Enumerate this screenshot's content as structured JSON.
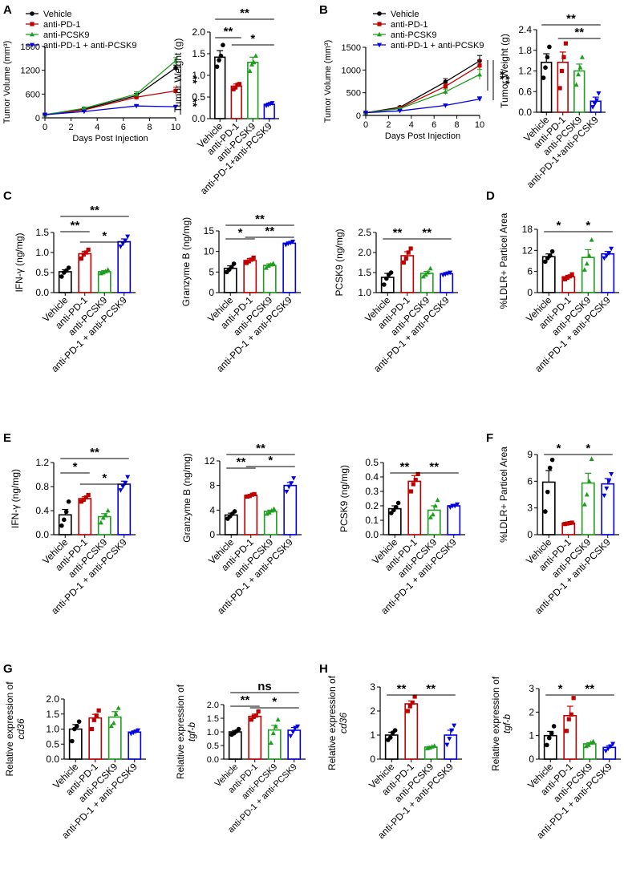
{
  "figure": {
    "panel_labels": [
      "A",
      "B",
      "C",
      "D",
      "E",
      "F",
      "G",
      "H"
    ],
    "colors": {
      "vehicle": "#000000",
      "anti_pd1": "#c00000",
      "anti_pcsk9": "#1e9e1e",
      "combo": "#0000e0"
    }
  },
  "chart_data": [
    {
      "id": "A1",
      "type": "line",
      "title": "",
      "xlabel": "Days Post Injection",
      "ylabel": "Tumor Volume (mm³)",
      "x": [
        0,
        3,
        7,
        10
      ],
      "xlim": [
        0,
        10
      ],
      "xticks": [
        0,
        2,
        4,
        6,
        8,
        10
      ],
      "ylim": [
        0,
        1800
      ],
      "yticks": [
        0,
        600,
        1200,
        1800
      ],
      "legend": [
        "Vehicle",
        "anti-PD-1",
        "anti-PCSK9",
        "anti-PD-1 + anti-PCSK9"
      ],
      "series": [
        {
          "name": "Vehicle",
          "values": [
            80,
            220,
            560,
            1260
          ],
          "err": [
            15,
            30,
            60,
            70
          ]
        },
        {
          "name": "anti-PD-1",
          "values": [
            80,
            200,
            520,
            680
          ],
          "err": [
            15,
            25,
            60,
            90
          ]
        },
        {
          "name": "anti-PCSK9",
          "values": [
            80,
            240,
            600,
            1440
          ],
          "err": [
            15,
            30,
            60,
            80
          ]
        },
        {
          "name": "anti-PD-1 + anti-PCSK9",
          "values": [
            80,
            160,
            300,
            280
          ],
          "err": [
            10,
            15,
            25,
            20
          ]
        }
      ],
      "annotations": [
        "**",
        "**"
      ]
    },
    {
      "id": "A2",
      "type": "bar",
      "title": "",
      "ylabel": "Tumor Weight (g)",
      "ylim": [
        0,
        2.0
      ],
      "yticks": [
        0.0,
        0.5,
        1.0,
        1.5,
        2.0
      ],
      "categories": [
        "Vehicle",
        "anti-PD-1",
        "anti-PCSK9",
        "anti-PD-1+anti-PCSK9"
      ],
      "values": [
        1.42,
        0.75,
        1.3,
        0.33
      ],
      "err": [
        0.15,
        0.05,
        0.12,
        0.03
      ],
      "points": [
        [
          1.2,
          1.35,
          1.45,
          1.7
        ],
        [
          0.68,
          0.72,
          0.78,
          0.8
        ],
        [
          1.1,
          1.25,
          1.3,
          1.45
        ],
        [
          0.3,
          0.32,
          0.34,
          0.36
        ]
      ],
      "sig": [
        {
          "a": 0,
          "b": 1,
          "label": "**"
        },
        {
          "a": 1,
          "b": 3,
          "label": "*"
        },
        {
          "a": 0,
          "b": 3,
          "label": "**"
        }
      ]
    },
    {
      "id": "B1",
      "type": "line",
      "title": "",
      "xlabel": "Days Post Injection",
      "ylabel": "Tumor Volume (mm³)",
      "x": [
        0,
        3,
        7,
        10
      ],
      "xlim": [
        0,
        10
      ],
      "xticks": [
        0,
        2,
        4,
        6,
        8,
        10
      ],
      "ylim": [
        0,
        1500
      ],
      "yticks": [
        0,
        500,
        1000,
        1500
      ],
      "legend": [
        "Vehicle",
        "anti-PD-1",
        "anti-PCSK9",
        "anti-PD-1 + anti-PCSK9"
      ],
      "series": [
        {
          "name": "Vehicle",
          "values": [
            60,
            180,
            740,
            1200
          ],
          "err": [
            10,
            25,
            70,
            120
          ]
        },
        {
          "name": "anti-PD-1",
          "values": [
            60,
            160,
            640,
            1100
          ],
          "err": [
            10,
            20,
            60,
            120
          ]
        },
        {
          "name": "anti-PCSK9",
          "values": [
            60,
            150,
            520,
            900
          ],
          "err": [
            10,
            20,
            60,
            110
          ]
        },
        {
          "name": "anti-PD-1 + anti-PCSK9",
          "values": [
            60,
            100,
            220,
            360
          ],
          "err": [
            10,
            15,
            25,
            50
          ]
        }
      ],
      "annotations": [
        "**",
        "**"
      ]
    },
    {
      "id": "B2",
      "type": "bar",
      "title": "",
      "ylabel": "Tumor Weight (g)",
      "ylim": [
        0,
        2.4
      ],
      "yticks": [
        0.0,
        0.6,
        1.2,
        1.8,
        2.4
      ],
      "categories": [
        "Vehicle",
        "anti-PD-1",
        "anti-PCSK9",
        "anti-PD-1+anti-PCSK9"
      ],
      "values": [
        1.45,
        1.45,
        1.2,
        0.32
      ],
      "err": [
        0.25,
        0.3,
        0.2,
        0.12
      ],
      "points": [
        [
          1.0,
          1.3,
          1.6,
          1.9
        ],
        [
          0.7,
          1.2,
          1.6,
          2.0
        ],
        [
          0.8,
          1.1,
          1.3,
          1.6
        ],
        [
          0.15,
          0.25,
          0.35,
          0.55
        ]
      ],
      "sig": [
        {
          "a": 1,
          "b": 3,
          "label": "**"
        },
        {
          "a": 0,
          "b": 3,
          "label": "**"
        }
      ]
    },
    {
      "id": "C1",
      "type": "bar",
      "title": "",
      "ylabel": "IFN-γ (ng/mg)",
      "ylim": [
        0,
        1.5
      ],
      "yticks": [
        0.0,
        0.5,
        1.0,
        1.5
      ],
      "categories": [
        "Vehicle",
        "anti-PD-1",
        "anti-PCSK9",
        "anti-PD-1 + anti-PCSK9"
      ],
      "values": [
        0.52,
        0.97,
        0.52,
        1.27
      ],
      "err": [
        0.05,
        0.06,
        0.03,
        0.07
      ],
      "points": [
        [
          0.4,
          0.5,
          0.55,
          0.62
        ],
        [
          0.85,
          0.95,
          1.0,
          1.07
        ],
        [
          0.48,
          0.5,
          0.53,
          0.57
        ],
        [
          1.15,
          1.22,
          1.3,
          1.4
        ]
      ],
      "sig": [
        {
          "a": 0,
          "b": 1,
          "label": "**"
        },
        {
          "a": 1,
          "b": 3,
          "label": "*"
        },
        {
          "a": 0,
          "b": 3,
          "label": "**"
        }
      ]
    },
    {
      "id": "C2",
      "type": "bar",
      "title": "",
      "ylabel": "Granzyme B (ng/mg)",
      "ylim": [
        0,
        15
      ],
      "yticks": [
        0,
        5,
        10,
        15
      ],
      "categories": [
        "Vehicle",
        "anti-PD-1",
        "anti-PCSK9",
        "anti-PD-1 + anti-PCSK9"
      ],
      "values": [
        5.9,
        7.8,
        6.6,
        12.0
      ],
      "err": [
        0.6,
        0.5,
        0.4,
        0.3
      ],
      "points": [
        [
          5.0,
          5.6,
          6.2,
          7.0
        ],
        [
          7.2,
          7.6,
          8.0,
          8.5
        ],
        [
          6.0,
          6.5,
          6.8,
          7.1
        ],
        [
          11.6,
          11.9,
          12.1,
          12.4
        ]
      ],
      "sig": [
        {
          "a": 0,
          "b": 1,
          "label": "*"
        },
        {
          "a": 1,
          "b": 3,
          "label": "**"
        },
        {
          "a": 0,
          "b": 3,
          "label": "**"
        }
      ]
    },
    {
      "id": "C3",
      "type": "bar",
      "title": "",
      "ylabel": "PCSK9 (ng/mg)",
      "ylim": [
        1.0,
        2.5
      ],
      "yticks": [
        1.0,
        1.5,
        2.0,
        2.5
      ],
      "categories": [
        "Vehicle",
        "anti-PD-1",
        "anti-PCSK9",
        "anti-PD-1 + anti-PCSK9"
      ],
      "values": [
        1.38,
        1.92,
        1.48,
        1.47
      ],
      "err": [
        0.1,
        0.1,
        0.05,
        0.03
      ],
      "points": [
        [
          1.2,
          1.35,
          1.45,
          1.5
        ],
        [
          1.75,
          1.85,
          2.0,
          2.1
        ],
        [
          1.4,
          1.45,
          1.5,
          1.6
        ],
        [
          1.44,
          1.46,
          1.48,
          1.5
        ]
      ],
      "sig": [
        {
          "a": 0,
          "b": 1,
          "label": "**"
        },
        {
          "a": 1,
          "b": 3,
          "label": "**"
        }
      ]
    },
    {
      "id": "D",
      "type": "bar",
      "title": "",
      "ylabel": "%LDLR+ Particel Area",
      "ylim": [
        0,
        18
      ],
      "yticks": [
        0,
        6,
        12,
        18
      ],
      "categories": [
        "Vehicle",
        "anti-PD-1",
        "anti-PCSK9",
        "anti-PD-1 + anti-PCSK9"
      ],
      "values": [
        10.2,
        4.5,
        10.0,
        11.0
      ],
      "err": [
        0.8,
        0.4,
        2.2,
        0.7
      ],
      "points": [
        [
          8.8,
          9.8,
          10.5,
          11.7
        ],
        [
          3.8,
          4.2,
          4.6,
          5.2
        ],
        [
          6.5,
          8.2,
          10.5,
          15.0
        ],
        [
          9.8,
          10.5,
          11.2,
          12.5
        ]
      ],
      "sig": [
        {
          "a": 0,
          "b": 1,
          "label": "*"
        },
        {
          "a": 1,
          "b": 3,
          "label": "*"
        }
      ]
    },
    {
      "id": "E1",
      "type": "bar",
      "title": "",
      "ylabel": "IFN-γ (ng/mg)",
      "ylim": [
        0,
        1.2
      ],
      "yticks": [
        0.0,
        0.4,
        0.8,
        1.2
      ],
      "categories": [
        "Vehicle",
        "anti-PD-1",
        "anti-PCSK9",
        "anti-PD-1 + anti-PCSK9"
      ],
      "values": [
        0.33,
        0.6,
        0.3,
        0.84
      ],
      "err": [
        0.09,
        0.03,
        0.05,
        0.05
      ],
      "points": [
        [
          0.15,
          0.25,
          0.38,
          0.55
        ],
        [
          0.55,
          0.58,
          0.62,
          0.66
        ],
        [
          0.2,
          0.28,
          0.32,
          0.4
        ],
        [
          0.74,
          0.8,
          0.86,
          0.96
        ]
      ],
      "sig": [
        {
          "a": 0,
          "b": 1,
          "label": "*"
        },
        {
          "a": 1,
          "b": 3,
          "label": "*"
        },
        {
          "a": 0,
          "b": 3,
          "label": "**"
        }
      ]
    },
    {
      "id": "E2",
      "type": "bar",
      "title": "",
      "ylabel": "Granzyme B (ng/mg)",
      "ylim": [
        0,
        12
      ],
      "yticks": [
        0,
        4,
        8,
        12
      ],
      "categories": [
        "Vehicle",
        "anti-PD-1",
        "anti-PCSK9",
        "anti-PD-1 + anti-PCSK9"
      ],
      "values": [
        3.2,
        6.4,
        3.8,
        8.0
      ],
      "err": [
        0.3,
        0.1,
        0.2,
        0.5
      ],
      "points": [
        [
          2.6,
          3.0,
          3.4,
          3.8
        ],
        [
          6.2,
          6.3,
          6.5,
          6.6
        ],
        [
          3.4,
          3.6,
          3.9,
          4.2
        ],
        [
          7.0,
          7.8,
          8.4,
          9.2
        ]
      ],
      "sig": [
        {
          "a": 0,
          "b": 1,
          "label": "**"
        },
        {
          "a": 1,
          "b": 3,
          "label": "*"
        },
        {
          "a": 0,
          "b": 3,
          "label": "**"
        }
      ]
    },
    {
      "id": "E3",
      "type": "bar",
      "title": "",
      "ylabel": "PCSK9 (ng/mg)",
      "ylim": [
        0,
        0.5
      ],
      "yticks": [
        0.0,
        0.1,
        0.2,
        0.3,
        0.4,
        0.5
      ],
      "categories": [
        "Vehicle",
        "anti-PD-1",
        "anti-PCSK9",
        "anti-PD-1 + anti-PCSK9"
      ],
      "values": [
        0.18,
        0.37,
        0.17,
        0.2
      ],
      "err": [
        0.02,
        0.04,
        0.03,
        0.01
      ],
      "points": [
        [
          0.15,
          0.17,
          0.19,
          0.22
        ],
        [
          0.3,
          0.35,
          0.38,
          0.42
        ],
        [
          0.12,
          0.14,
          0.2,
          0.24
        ],
        [
          0.19,
          0.2,
          0.2,
          0.21
        ]
      ],
      "sig": [
        {
          "a": 0,
          "b": 1,
          "label": "**"
        },
        {
          "a": 1,
          "b": 3,
          "label": "**"
        }
      ]
    },
    {
      "id": "F",
      "type": "bar",
      "title": "",
      "ylabel": "%LDLR+ Particel Area",
      "ylim": [
        0,
        9
      ],
      "yticks": [
        0,
        3,
        6,
        9
      ],
      "categories": [
        "Vehicle",
        "anti-PD-1",
        "anti-PCSK9",
        "anti-PD-1 + anti-PCSK9"
      ],
      "values": [
        5.9,
        1.3,
        5.8,
        5.7
      ],
      "err": [
        1.3,
        0.05,
        1.1,
        0.6
      ],
      "points": [
        [
          2.6,
          4.8,
          7.5,
          8.4
        ],
        [
          1.2,
          1.25,
          1.3,
          1.35
        ],
        [
          3.4,
          4.5,
          6.0,
          8.5
        ],
        [
          4.4,
          5.2,
          6.0,
          6.8
        ]
      ],
      "sig": [
        {
          "a": 0,
          "b": 1,
          "label": "*"
        },
        {
          "a": 1,
          "b": 3,
          "label": "*"
        }
      ]
    },
    {
      "id": "G1",
      "type": "bar",
      "title": "",
      "ylabel": "Relative expression of",
      "ylabel_gene": "cd36",
      "ylim": [
        0,
        2.0
      ],
      "yticks": [
        0.0,
        0.5,
        1.0,
        1.5,
        2.0
      ],
      "categories": [
        "Vehicle",
        "anti-PD-1",
        "anti-PCSK9",
        "anti-PD-1 + anti-PCSK9"
      ],
      "values": [
        1.0,
        1.37,
        1.4,
        0.9
      ],
      "err": [
        0.15,
        0.12,
        0.18,
        0.04
      ],
      "points": [
        [
          0.6,
          1.0,
          1.1,
          1.25
        ],
        [
          1.0,
          1.3,
          1.45,
          1.62
        ],
        [
          1.1,
          1.2,
          1.5,
          1.7
        ],
        [
          0.85,
          0.88,
          0.92,
          0.96
        ]
      ],
      "sig": []
    },
    {
      "id": "G2",
      "type": "bar",
      "title": "",
      "ylabel": "Relative expression of",
      "ylabel_gene": "tgf-b",
      "ylim": [
        0,
        2.0
      ],
      "yticks": [
        0.0,
        0.5,
        1.0,
        1.5,
        2.0
      ],
      "categories": [
        "Vehicle",
        "anti-PD-1",
        "anti-PCSK9",
        "anti-PD-1 + anti-PCSK9"
      ],
      "values": [
        1.0,
        1.57,
        1.07,
        1.06
      ],
      "err": [
        0.05,
        0.08,
        0.17,
        0.1
      ],
      "points": [
        [
          0.9,
          0.95,
          1.02,
          1.1
        ],
        [
          1.45,
          1.55,
          1.6,
          1.75
        ],
        [
          0.6,
          0.95,
          1.2,
          1.45
        ],
        [
          0.85,
          1.0,
          1.15,
          1.2
        ]
      ],
      "sig": [
        {
          "a": 0,
          "b": 1,
          "label": "**"
        },
        {
          "a": 1,
          "b": 3,
          "label": "*"
        },
        {
          "a": 0,
          "b": 3,
          "label": "ns"
        }
      ]
    },
    {
      "id": "H1",
      "type": "bar",
      "title": "",
      "ylabel": "Relative expression of",
      "ylabel_gene": "cd36",
      "ylim": [
        0,
        3
      ],
      "yticks": [
        0,
        1,
        2,
        3
      ],
      "categories": [
        "Vehicle",
        "anti-PD-1",
        "anti-PCSK9",
        "anti-PD-1 + anti-PCSK9"
      ],
      "values": [
        1.0,
        2.3,
        0.5,
        1.0
      ],
      "err": [
        0.12,
        0.12,
        0.03,
        0.2
      ],
      "points": [
        [
          0.8,
          0.9,
          1.1,
          1.2
        ],
        [
          2.0,
          2.2,
          2.35,
          2.6
        ],
        [
          0.45,
          0.48,
          0.52,
          0.55
        ],
        [
          0.6,
          0.85,
          1.2,
          1.4
        ]
      ],
      "sig": [
        {
          "a": 0,
          "b": 1,
          "label": "**"
        },
        {
          "a": 1,
          "b": 3,
          "label": "**"
        }
      ]
    },
    {
      "id": "H2",
      "type": "bar",
      "title": "",
      "ylabel": "Relative expression of",
      "ylabel_gene": "tgf-b",
      "ylim": [
        0,
        3
      ],
      "yticks": [
        0,
        1,
        2,
        3
      ],
      "categories": [
        "Vehicle",
        "anti-PD-1",
        "anti-PCSK9",
        "anti-PD-1 + anti-PCSK9"
      ],
      "values": [
        1.0,
        1.85,
        0.65,
        0.5
      ],
      "err": [
        0.18,
        0.4,
        0.05,
        0.07
      ],
      "points": [
        [
          0.6,
          0.9,
          1.1,
          1.4
        ],
        [
          1.2,
          1.7,
          1.9,
          2.6
        ],
        [
          0.55,
          0.6,
          0.7,
          0.75
        ],
        [
          0.35,
          0.45,
          0.55,
          0.65
        ]
      ],
      "sig": [
        {
          "a": 0,
          "b": 1,
          "label": "*"
        },
        {
          "a": 1,
          "b": 3,
          "label": "**"
        }
      ]
    }
  ]
}
